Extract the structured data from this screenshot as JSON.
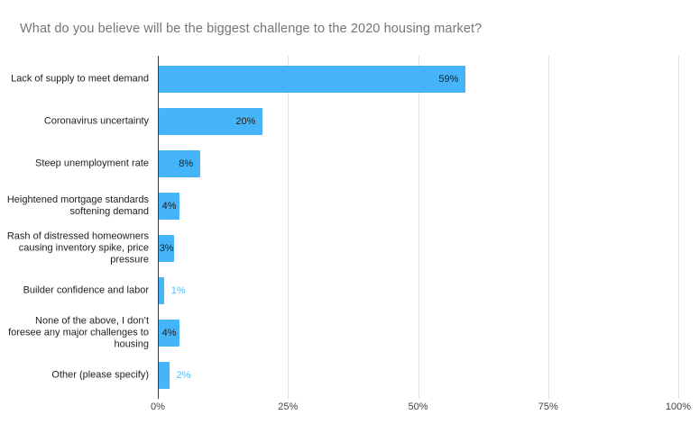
{
  "chart_data": {
    "type": "bar",
    "orientation": "horizontal",
    "title": "What do you believe will be the biggest challenge to the 2020 housing market?",
    "categories": [
      "Lack of supply to meet demand",
      "Coronavirus uncertainty",
      "Steep unemployment rate",
      "Heightened mortgage standards softening demand",
      "Rash of distressed homeowners causing inventory spike, price pressure",
      "Builder confidence and labor",
      "None of the above, I don’t foresee any major challenges to housing",
      "Other (please specify)"
    ],
    "values": [
      59,
      20,
      8,
      4,
      3,
      1,
      4,
      2
    ],
    "value_labels": [
      "59%",
      "20%",
      "8%",
      "4%",
      "3%",
      "1%",
      "4%",
      "2%"
    ],
    "xlabel": "",
    "ylabel": "",
    "xlim": [
      0,
      100
    ],
    "x_ticks": [
      "0%",
      "25%",
      "50%",
      "75%",
      "100%"
    ],
    "x_tick_values": [
      0,
      25,
      50,
      75,
      100
    ],
    "grid": true,
    "legend": "none",
    "colors": {
      "bar": "#46b4f8",
      "value_label_inside": "#212121",
      "value_label_outside": "#55bdf8",
      "title": "#757575",
      "category_label": "#212121",
      "axis_line": "#3c3c3c",
      "gridline": "#e0e0e0",
      "tick_label": "#444444"
    }
  }
}
